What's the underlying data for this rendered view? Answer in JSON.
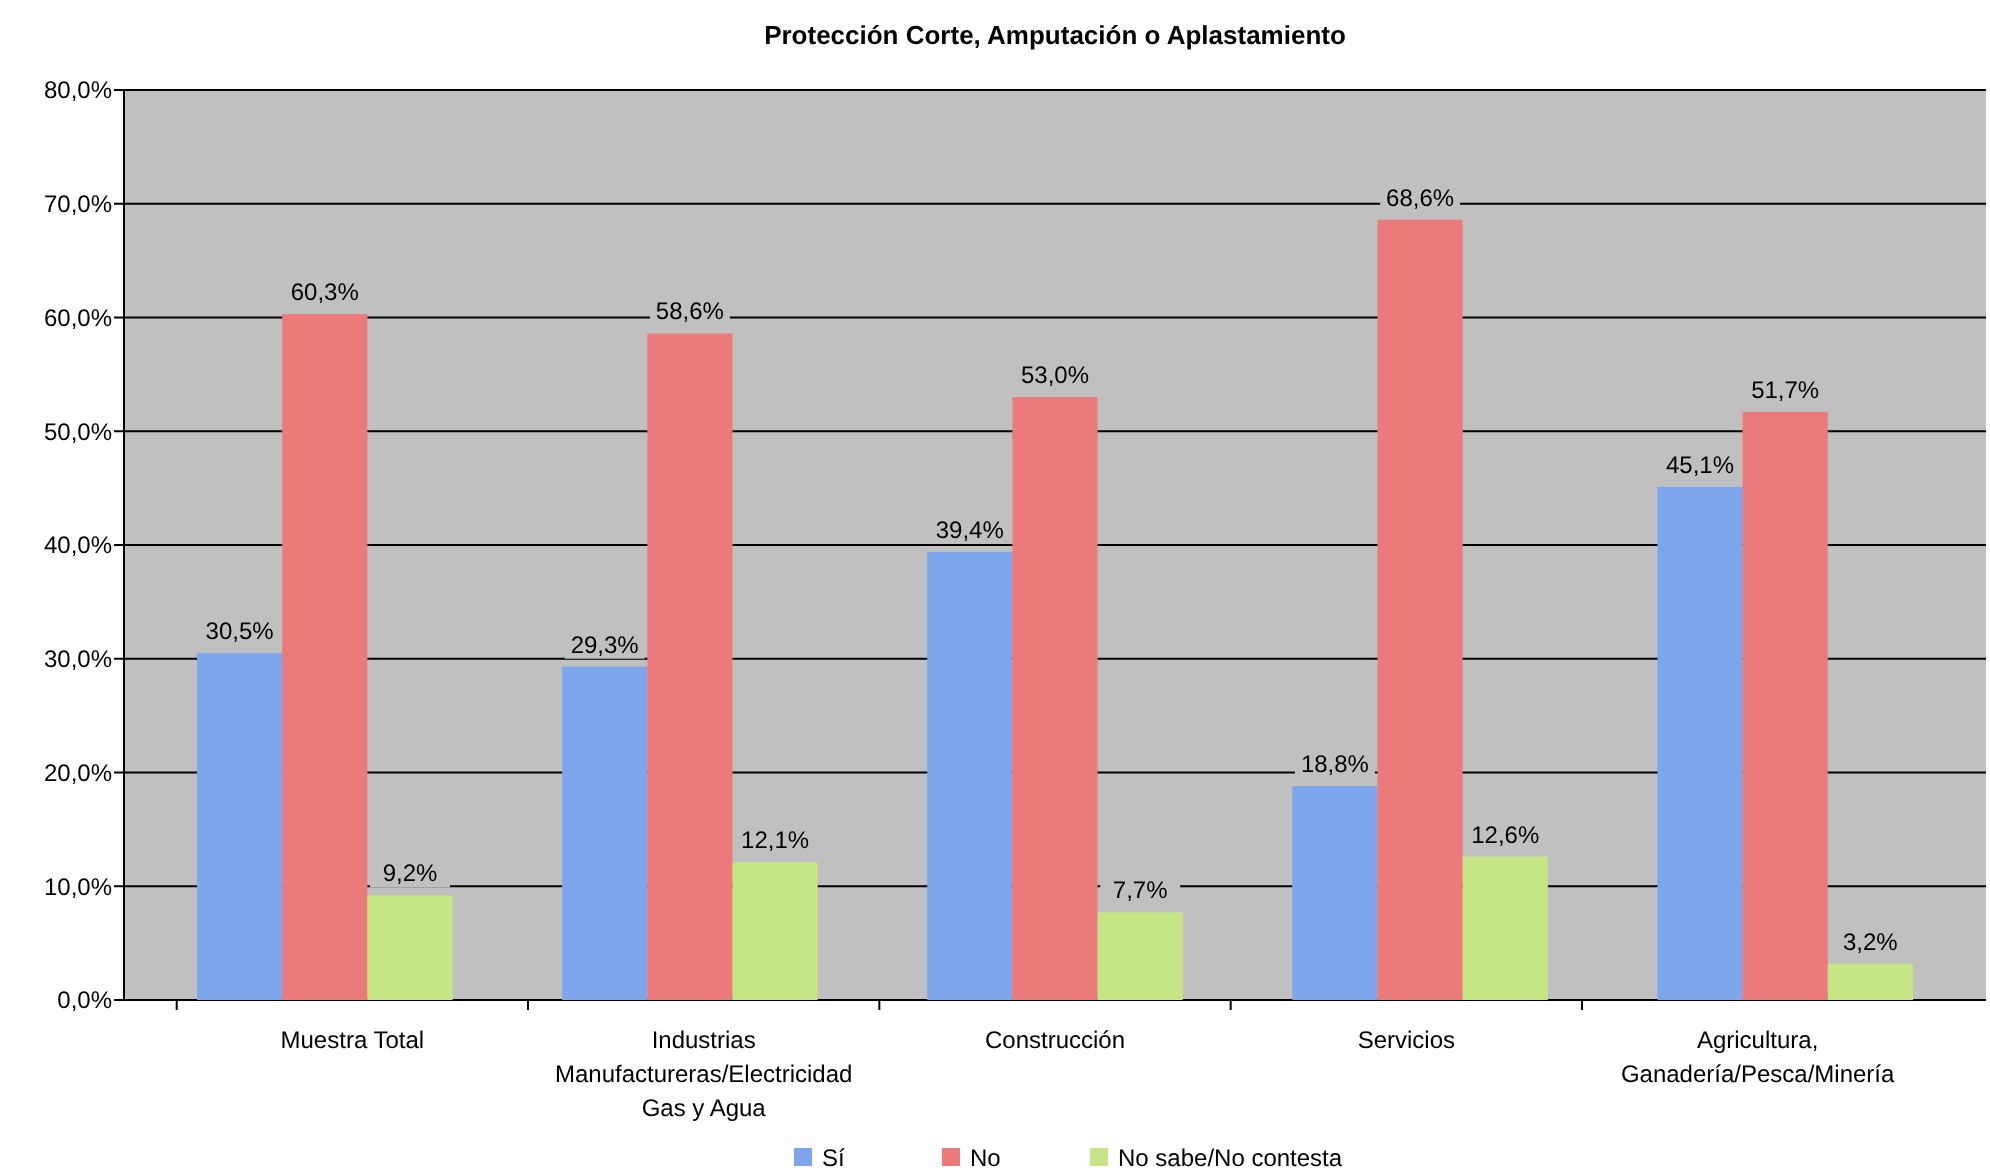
{
  "chart_data": {
    "type": "bar",
    "title": "Protección Corte, Amputación o Aplastamiento",
    "categories": [
      "Muestra Total",
      "Industrias Manufactureras/Electricidad Gas y Agua",
      "Construcción",
      "Servicios",
      "Agricultura, Ganadería/Pesca/Minería"
    ],
    "series": [
      {
        "name": "Sí",
        "color": "#7ea6ec",
        "values": [
          30.5,
          29.3,
          39.4,
          18.8,
          45.1
        ],
        "value_labels": [
          "30,5%",
          "29,3%",
          "39,4%",
          "18,8%",
          "45,1%"
        ]
      },
      {
        "name": "No",
        "color": "#ec7a7a",
        "values": [
          60.3,
          58.6,
          53.0,
          68.6,
          51.7
        ],
        "value_labels": [
          "60,3%",
          "58,6%",
          "53,0%",
          "68,6%",
          "51,7%"
        ]
      },
      {
        "name": "No sabe/No contesta",
        "color": "#c6e585",
        "values": [
          9.2,
          12.1,
          7.7,
          12.6,
          3.2
        ],
        "value_labels": [
          "9,2%",
          "12,1%",
          "7,7%",
          "12,6%",
          "3,2%"
        ]
      }
    ],
    "ylim": [
      0,
      80
    ],
    "yticks": [
      {
        "value": 0,
        "label": "0,0%"
      },
      {
        "value": 10,
        "label": "10,0%"
      },
      {
        "value": 20,
        "label": "20,0%"
      },
      {
        "value": 30,
        "label": "30,0%"
      },
      {
        "value": 40,
        "label": "40,0%"
      },
      {
        "value": 50,
        "label": "50,0%"
      },
      {
        "value": 60,
        "label": "60,0%"
      },
      {
        "value": 70,
        "label": "70,0%"
      },
      {
        "value": 80,
        "label": "80,0%"
      }
    ],
    "grid": "y",
    "legend": "bottom"
  }
}
